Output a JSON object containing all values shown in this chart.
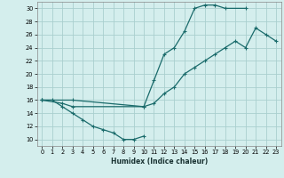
{
  "xlabel": "Humidex (Indice chaleur)",
  "bg_color": "#d4eeed",
  "grid_color": "#aacfcf",
  "line_color": "#1a6b6b",
  "xlim": [
    -0.5,
    23.5
  ],
  "ylim": [
    9,
    31
  ],
  "xticks": [
    0,
    1,
    2,
    3,
    4,
    5,
    6,
    7,
    8,
    9,
    10,
    11,
    12,
    13,
    14,
    15,
    16,
    17,
    18,
    19,
    20,
    21,
    22,
    23
  ],
  "yticks": [
    10,
    12,
    14,
    16,
    18,
    20,
    22,
    24,
    26,
    28,
    30
  ],
  "line1_x": [
    0,
    1,
    2,
    3,
    4,
    5,
    6,
    7,
    8,
    9,
    10
  ],
  "line1_y": [
    16,
    16,
    15,
    14,
    13,
    12,
    11.5,
    11,
    10,
    10,
    10.5
  ],
  "line2_x": [
    0,
    3,
    10,
    11,
    12,
    13,
    14,
    15,
    16,
    17,
    18,
    20
  ],
  "line2_y": [
    16,
    16,
    15,
    19,
    23,
    24,
    26.5,
    30,
    30.5,
    30.5,
    30,
    30
  ],
  "line3_x": [
    0,
    2,
    3,
    10,
    11,
    12,
    13,
    14,
    15,
    16,
    17,
    18,
    19,
    20,
    21,
    22,
    23
  ],
  "line3_y": [
    16,
    15.5,
    15,
    15,
    15.5,
    17,
    18,
    20,
    21,
    22,
    23,
    24,
    25,
    24,
    27,
    26,
    25
  ]
}
